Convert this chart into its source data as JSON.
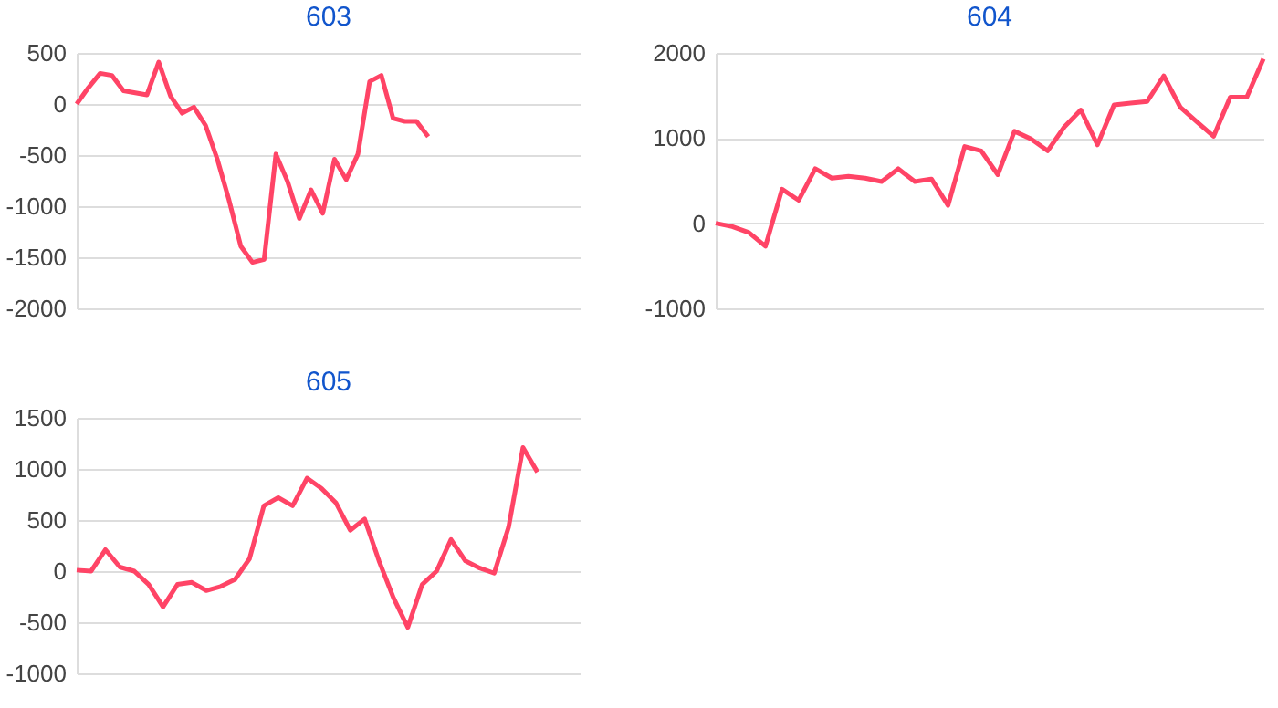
{
  "chart_data": [
    {
      "type": "line",
      "title": "603",
      "categories": [
        null,
        null,
        null,
        null,
        null,
        null,
        null,
        null,
        null,
        null,
        null,
        null,
        null,
        null,
        null,
        null,
        null,
        null,
        null,
        null,
        null,
        null,
        null,
        null,
        null,
        null,
        null,
        null,
        null,
        null,
        null,
        null,
        null,
        null,
        null,
        null,
        null,
        null,
        null,
        null,
        null,
        null,
        null,
        null
      ],
      "series": [
        {
          "color": "#ff4466",
          "values": [
            0,
            160,
            300,
            280,
            130,
            110,
            90,
            410,
            80,
            -90,
            -30,
            -210,
            -540,
            -940,
            -1390,
            -1550,
            -1520,
            -490,
            -760,
            -1120,
            -840,
            -1070,
            -540,
            -740,
            -490,
            220,
            280,
            -140,
            -170,
            -170,
            -320,
            null,
            null,
            null,
            null,
            null,
            null,
            null,
            null,
            null,
            null,
            null,
            null,
            null
          ]
        }
      ],
      "ylim": [
        -2000,
        500
      ],
      "yticks": [
        -2000,
        -1500,
        -1000,
        -500,
        0,
        500
      ],
      "grid": "y",
      "tick_labels": "y"
    },
    {
      "type": "line",
      "title": "604",
      "categories": [
        null,
        null,
        null,
        null,
        null,
        null,
        null,
        null,
        null,
        null,
        null,
        null,
        null,
        null,
        null,
        null,
        null,
        null,
        null,
        null,
        null,
        null,
        null,
        null,
        null,
        null,
        null,
        null,
        null,
        null,
        null,
        null,
        null,
        null
      ],
      "series": [
        {
          "color": "#ff4466",
          "values": [
            0,
            -40,
            -110,
            -270,
            400,
            270,
            640,
            530,
            550,
            530,
            490,
            640,
            490,
            520,
            210,
            900,
            850,
            570,
            1080,
            990,
            850,
            1130,
            1330,
            920,
            1390,
            1410,
            1430,
            1730,
            1360,
            1190,
            1020,
            1480,
            1480,
            1930
          ]
        }
      ],
      "ylim": [
        -1000,
        2000
      ],
      "yticks": [
        -1000,
        0,
        1000,
        2000
      ],
      "grid": "y",
      "tick_labels": "y"
    },
    {
      "type": "line",
      "title": "605",
      "categories": [
        null,
        null,
        null,
        null,
        null,
        null,
        null,
        null,
        null,
        null,
        null,
        null,
        null,
        null,
        null,
        null,
        null,
        null,
        null,
        null,
        null,
        null,
        null,
        null,
        null,
        null,
        null,
        null,
        null,
        null,
        null,
        null,
        null,
        null,
        null,
        null
      ],
      "series": [
        {
          "color": "#ff4466",
          "values": [
            10,
            0,
            210,
            40,
            0,
            -130,
            -350,
            -130,
            -110,
            -190,
            -150,
            -80,
            120,
            640,
            720,
            640,
            910,
            810,
            670,
            400,
            510,
            100,
            -260,
            -550,
            -130,
            0,
            310,
            100,
            30,
            -20,
            430,
            1210,
            970,
            null,
            null,
            null
          ]
        }
      ],
      "ylim": [
        -1000,
        1500
      ],
      "yticks": [
        -1000,
        -500,
        0,
        500,
        1000,
        1500
      ],
      "grid": "y",
      "tick_labels": "y"
    }
  ]
}
